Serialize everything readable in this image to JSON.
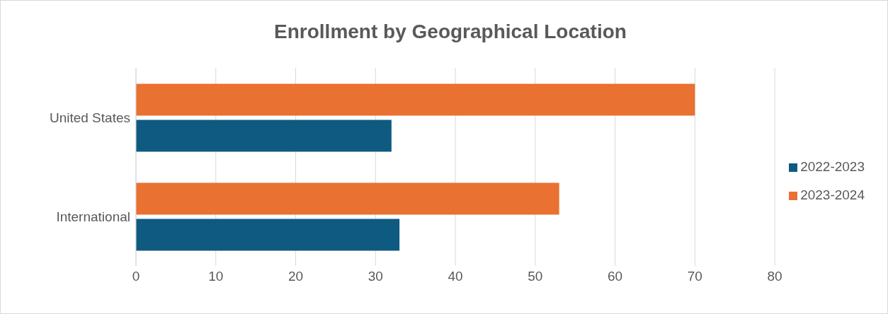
{
  "chart_data": {
    "type": "bar",
    "title": "Enrollment by Geographical Location",
    "orientation": "horizontal",
    "categories": [
      "United States",
      "International"
    ],
    "series": [
      {
        "name": "2023-2024",
        "color": "#e97132",
        "values": [
          70,
          53
        ]
      },
      {
        "name": "2022-2023",
        "color": "#0f5a80",
        "values": [
          32,
          33
        ]
      }
    ],
    "xlim": [
      0,
      80
    ],
    "xticks": [
      0,
      10,
      20,
      30,
      40,
      50,
      60,
      70,
      80
    ],
    "grid": "x",
    "legend": "right"
  }
}
